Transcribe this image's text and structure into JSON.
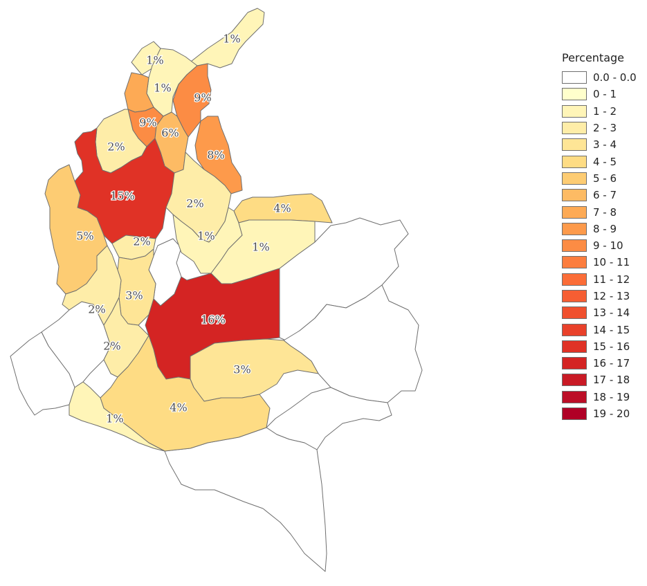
{
  "legend": {
    "title": "Percentage",
    "classes": [
      {
        "label": "0.0 - 0.0",
        "color": "#ffffff"
      },
      {
        "label": "0 - 1",
        "color": "#ffffcc"
      },
      {
        "label": "1 - 2",
        "color": "#fff5b8"
      },
      {
        "label": "2 - 3",
        "color": "#feeda8"
      },
      {
        "label": "3 - 4",
        "color": "#fee596"
      },
      {
        "label": "4 - 5",
        "color": "#fedc84"
      },
      {
        "label": "5 - 6",
        "color": "#fdcc73"
      },
      {
        "label": "6 - 7",
        "color": "#fdbb64"
      },
      {
        "label": "7 - 8",
        "color": "#fdaa55"
      },
      {
        "label": "8 - 9",
        "color": "#fd9a4b"
      },
      {
        "label": "9 - 10",
        "color": "#fc8c44"
      },
      {
        "label": "10 - 11",
        "color": "#fc7d3e"
      },
      {
        "label": "11 - 12",
        "color": "#fb6d38"
      },
      {
        "label": "12 - 13",
        "color": "#f65e33"
      },
      {
        "label": "13 - 14",
        "color": "#f0502e"
      },
      {
        "label": "14 - 15",
        "color": "#e9412a"
      },
      {
        "label": "15 - 16",
        "color": "#e03226"
      },
      {
        "label": "16 - 17",
        "color": "#d42423"
      },
      {
        "label": "17 - 18",
        "color": "#c91a25"
      },
      {
        "label": "18 - 19",
        "color": "#bc0e27"
      },
      {
        "label": "19 - 20",
        "color": "#b00026"
      }
    ]
  },
  "regions": [
    {
      "id": "guajira",
      "label": "1%",
      "value": 1
    },
    {
      "id": "atlantico",
      "label": "1%",
      "value": 1
    },
    {
      "id": "magdalena",
      "label": "1%",
      "value": 1
    },
    {
      "id": "cesar",
      "label": "9%",
      "value": 9
    },
    {
      "id": "bolivar-north",
      "label": "",
      "value": 7
    },
    {
      "id": "sucre",
      "label": "9%",
      "value": 9
    },
    {
      "id": "bolivar-south",
      "label": "6%",
      "value": 6
    },
    {
      "id": "cordoba",
      "label": "2%",
      "value": 2
    },
    {
      "id": "norte-santander",
      "label": "8%",
      "value": 8
    },
    {
      "id": "antioquia",
      "label": "15%",
      "value": 15
    },
    {
      "id": "santander",
      "label": "2%",
      "value": 2
    },
    {
      "id": "arauca",
      "label": "4%",
      "value": 4
    },
    {
      "id": "choco",
      "label": "5%",
      "value": 5
    },
    {
      "id": "caldas",
      "label": "2%",
      "value": 2
    },
    {
      "id": "boyaca",
      "label": "1%",
      "value": 1
    },
    {
      "id": "casanare",
      "label": "1%",
      "value": 1
    },
    {
      "id": "tolima",
      "label": "3%",
      "value": 3
    },
    {
      "id": "valle",
      "label": "2%",
      "value": 2
    },
    {
      "id": "meta",
      "label": "16%",
      "value": 16
    },
    {
      "id": "huila",
      "label": "2%",
      "value": 2
    },
    {
      "id": "guaviare",
      "label": "3%",
      "value": 3
    },
    {
      "id": "caqueta",
      "label": "4%",
      "value": 4
    },
    {
      "id": "putumayo",
      "label": "1%",
      "value": 1
    },
    {
      "id": "cundinamarca",
      "label": "",
      "value": 0
    },
    {
      "id": "cauca",
      "label": "",
      "value": 0
    },
    {
      "id": "narino",
      "label": "",
      "value": 0
    },
    {
      "id": "vichada",
      "label": "",
      "value": 0
    },
    {
      "id": "guainia",
      "label": "",
      "value": 0
    },
    {
      "id": "vaupes",
      "label": "",
      "value": 0
    },
    {
      "id": "amazonas",
      "label": "",
      "value": 0
    }
  ]
}
